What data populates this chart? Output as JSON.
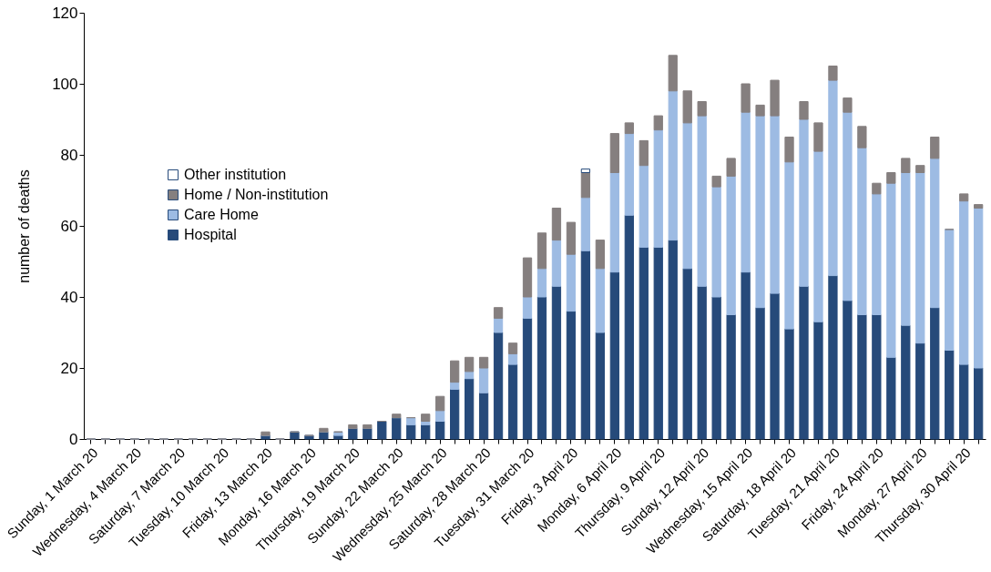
{
  "chart_data": {
    "type": "bar",
    "stacked": true,
    "ylabel": "number of deaths",
    "ylim": [
      0,
      120
    ],
    "yticks": [
      0,
      20,
      40,
      60,
      80,
      100,
      120
    ],
    "legend": "left",
    "categories": [
      "Sunday, 1 March 20",
      null,
      null,
      "Wednesday, 4 March 20",
      null,
      null,
      "Saturday, 7 March 20",
      null,
      null,
      "Tuesday, 10 March 20",
      null,
      null,
      "Friday, 13 March 20",
      null,
      null,
      "Monday, 16 March 20",
      null,
      null,
      "Thursday, 19 March 20",
      null,
      null,
      "Sunday, 22 March 20",
      null,
      null,
      "Wednesday, 25 March 20",
      null,
      null,
      "Saturday, 28 March 20",
      null,
      null,
      "Tuesday, 31 March 20",
      null,
      null,
      "Friday, 3 April 20",
      null,
      null,
      "Monday, 6 April 20",
      null,
      null,
      "Thursday, 9 April 20",
      null,
      null,
      "Sunday, 12 April 20",
      null,
      null,
      "Wednesday, 15 April 20",
      null,
      null,
      "Saturday, 18 April 20",
      null,
      null,
      "Tuesday, 21 April 20",
      null,
      null,
      "Friday, 24 April 20",
      null,
      null,
      "Monday, 27 April 20",
      null,
      null,
      "Thursday, 30 April 20",
      null
    ],
    "series": [
      {
        "name": "Hospital",
        "color": "#264a7a",
        "values": [
          0,
          0,
          0,
          0,
          0,
          0,
          0,
          0,
          0,
          0,
          0,
          0,
          1,
          0,
          2,
          1,
          2,
          1,
          3,
          3,
          5,
          6,
          4,
          4,
          5,
          14,
          17,
          13,
          30,
          21,
          34,
          40,
          43,
          36,
          53,
          30,
          47,
          63,
          54,
          54,
          56,
          48,
          43,
          40,
          35,
          47,
          37,
          41,
          31,
          43,
          33,
          46,
          39,
          35,
          35,
          23,
          32,
          27,
          37,
          25,
          21,
          20
        ]
      },
      {
        "name": "Care Home",
        "color": "#9dbbe3",
        "values": [
          0,
          0,
          0,
          0,
          0,
          0,
          0,
          0,
          0,
          0,
          0,
          0,
          0,
          0,
          0,
          0,
          0,
          1,
          0,
          0,
          0,
          0,
          2,
          1,
          3,
          2,
          2,
          7,
          4,
          3,
          6,
          8,
          13,
          16,
          15,
          18,
          28,
          23,
          23,
          33,
          42,
          41,
          48,
          31,
          39,
          45,
          54,
          50,
          47,
          47,
          48,
          55,
          53,
          47,
          34,
          49,
          43,
          48,
          42,
          34,
          46,
          45
        ]
      },
      {
        "name": "Home / Non-institution",
        "color": "#857f7f",
        "values": [
          0,
          0,
          0,
          0,
          0,
          0,
          0,
          0,
          0,
          0,
          0,
          0,
          1,
          0,
          0,
          0,
          1,
          0,
          1,
          1,
          0,
          1,
          0,
          2,
          4,
          6,
          4,
          3,
          3,
          3,
          11,
          10,
          9,
          9,
          7,
          8,
          11,
          3,
          7,
          4,
          10,
          9,
          4,
          3,
          5,
          8,
          3,
          10,
          7,
          5,
          8,
          4,
          4,
          6,
          3,
          3,
          4,
          2,
          6,
          0,
          2,
          1
        ]
      },
      {
        "name": "Other institution",
        "color": "#ffffff",
        "values": [
          null,
          null,
          null,
          null,
          null,
          null,
          null,
          null,
          null,
          null,
          null,
          null,
          null,
          null,
          null,
          null,
          null,
          null,
          null,
          null,
          null,
          null,
          null,
          null,
          null,
          null,
          null,
          null,
          null,
          null,
          null,
          null,
          null,
          null,
          1,
          null,
          null,
          null,
          null,
          null,
          null,
          null,
          null,
          null,
          null,
          null,
          null,
          null,
          null,
          null,
          null,
          null,
          null,
          null,
          null,
          null,
          null,
          null,
          null,
          null,
          null,
          null
        ]
      }
    ]
  }
}
